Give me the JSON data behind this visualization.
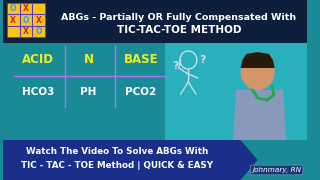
{
  "title_line1": "ABGs - Partially OR Fully Compensated With",
  "title_line2": "TIC-TAC-TOE METHOD",
  "header_bg": "#0d1f3c",
  "main_bg": "#1a8a96",
  "nurse_bg": "#2ab0bc",
  "bottom_bg": "#1a2f8a",
  "bottom_text_line1": "Watch The Video To Solve ABGs With",
  "bottom_text_line2": "TIC - TAC - TOE Method | QUICK & EASY",
  "grid_color": "#aa77ee",
  "grid_labels_row1": [
    "ACID",
    "N",
    "BASE"
  ],
  "grid_labels_row2": [
    "HCO3",
    "PH",
    "PCO2"
  ],
  "label_color_yellow": "#f0f020",
  "label_color_white": "#ffffff",
  "watermark": "Johnmary, RN",
  "title_color": "#ffffff",
  "bottom_text_color": "#ffffff",
  "icon_bg": "#f5c518",
  "icon_grid_color": "#6633cc",
  "icon_x_color": "#cc2222",
  "icon_o_color": "#3399ff"
}
